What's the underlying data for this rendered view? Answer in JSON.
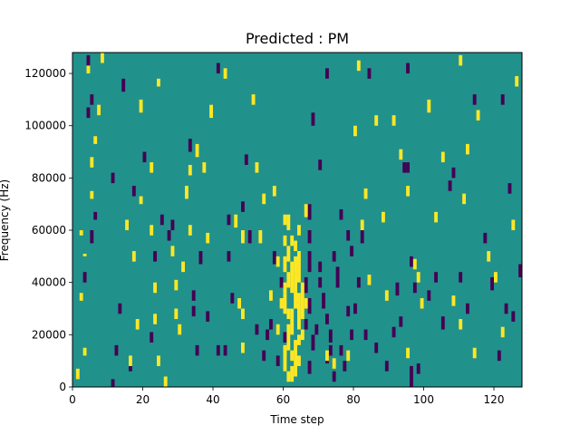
{
  "chart_data": {
    "type": "heatmap",
    "title": "Predicted : PM",
    "xlabel": "Time step",
    "ylabel": "Frequency (Hz)",
    "xlim": [
      0,
      128
    ],
    "ylim": [
      0,
      128000
    ],
    "xticks": [
      0,
      20,
      40,
      60,
      80,
      100,
      120
    ],
    "xtick_labels": [
      "0",
      "20",
      "40",
      "60",
      "80",
      "100",
      "120"
    ],
    "yticks": [
      0,
      20000,
      40000,
      60000,
      80000,
      100000,
      120000
    ],
    "ytick_labels": [
      "0",
      "20000",
      "40000",
      "60000",
      "80000",
      "100000",
      "120000"
    ],
    "grid": false,
    "colors": {
      "background": "#21918c",
      "low": "#440154",
      "high": "#fde725",
      "frame": "#000000"
    },
    "segments_high": [
      [
        4,
        120000,
        123000
      ],
      [
        2,
        58000,
        60000
      ],
      [
        3,
        50000,
        51000
      ],
      [
        2,
        33000,
        36000
      ],
      [
        1,
        3000,
        7000
      ],
      [
        3,
        12000,
        15000
      ],
      [
        5,
        84000,
        88000
      ],
      [
        6,
        93000,
        96000
      ],
      [
        7,
        104000,
        108000
      ],
      [
        5,
        72000,
        75000
      ],
      [
        8,
        124000,
        128000
      ],
      [
        17,
        48000,
        52000
      ],
      [
        19,
        70000,
        73000
      ],
      [
        16,
        8000,
        12000
      ],
      [
        18,
        22000,
        26000
      ],
      [
        15,
        60000,
        64000
      ],
      [
        19,
        105000,
        110000
      ],
      [
        22,
        82000,
        86000
      ],
      [
        24,
        115000,
        118000
      ],
      [
        22,
        58000,
        62000
      ],
      [
        23,
        36000,
        40000
      ],
      [
        23,
        24000,
        28000
      ],
      [
        24,
        8000,
        12000
      ],
      [
        26,
        0,
        4000
      ],
      [
        28,
        50000,
        54000
      ],
      [
        29,
        37000,
        41000
      ],
      [
        29,
        26000,
        30000
      ],
      [
        30,
        20000,
        24000
      ],
      [
        31,
        44000,
        48000
      ],
      [
        32,
        72000,
        77000
      ],
      [
        33,
        81000,
        85000
      ],
      [
        33,
        58000,
        62000
      ],
      [
        35,
        88000,
        93000
      ],
      [
        37,
        82000,
        86000
      ],
      [
        38,
        55000,
        59000
      ],
      [
        39,
        103000,
        108000
      ],
      [
        43,
        118000,
        122000
      ],
      [
        46,
        61000,
        66000
      ],
      [
        48,
        55000,
        60000
      ],
      [
        47,
        30000,
        34000
      ],
      [
        48,
        13000,
        17000
      ],
      [
        48,
        26000,
        30000
      ],
      [
        51,
        108000,
        112000
      ],
      [
        52,
        82000,
        86000
      ],
      [
        54,
        70000,
        74000
      ],
      [
        53,
        55000,
        60000
      ],
      [
        57,
        73000,
        77000
      ],
      [
        58,
        20000,
        24000
      ],
      [
        60,
        12000,
        16000
      ],
      [
        62,
        2000,
        6000
      ],
      [
        64,
        8000,
        12000
      ],
      [
        66,
        65000,
        70000
      ],
      [
        72,
        10000,
        14000
      ],
      [
        74,
        7000,
        11000
      ],
      [
        80,
        96000,
        100000
      ],
      [
        81,
        121000,
        125000
      ],
      [
        82,
        60000,
        64000
      ],
      [
        83,
        72000,
        76000
      ],
      [
        84,
        39000,
        43000
      ],
      [
        86,
        100000,
        104000
      ],
      [
        88,
        63000,
        67000
      ],
      [
        89,
        33000,
        37000
      ],
      [
        91,
        100000,
        104000
      ],
      [
        93,
        87000,
        91000
      ],
      [
        95,
        73000,
        77000
      ],
      [
        95,
        11000,
        15000
      ],
      [
        97,
        45000,
        49000
      ],
      [
        98,
        40000,
        44000
      ],
      [
        99,
        30000,
        34000
      ],
      [
        101,
        105000,
        110000
      ],
      [
        103,
        63000,
        67000
      ],
      [
        105,
        86000,
        90000
      ],
      [
        108,
        31000,
        35000
      ],
      [
        110,
        123000,
        127000
      ],
      [
        110,
        22000,
        26000
      ],
      [
        112,
        89000,
        93000
      ],
      [
        115,
        102000,
        106000
      ],
      [
        118,
        48000,
        52000
      ],
      [
        120,
        40000,
        44000
      ],
      [
        122,
        19000,
        23000
      ],
      [
        126,
        115000,
        119000
      ],
      [
        111,
        70000,
        74000
      ],
      [
        114,
        11000,
        15000
      ],
      [
        78,
        10000,
        14000
      ],
      [
        56,
        33000,
        37000
      ],
      [
        125,
        60000,
        64000
      ]
    ],
    "segments_low": [
      [
        4,
        123000,
        127000
      ],
      [
        5,
        108000,
        112000
      ],
      [
        4,
        103000,
        107000
      ],
      [
        6,
        64000,
        67000
      ],
      [
        5,
        55000,
        60000
      ],
      [
        3,
        40000,
        44000
      ],
      [
        11,
        78000,
        82000
      ],
      [
        12,
        12000,
        16000
      ],
      [
        13,
        28000,
        32000
      ],
      [
        11,
        0,
        3000
      ],
      [
        14,
        113000,
        118000
      ],
      [
        16,
        6000,
        10000
      ],
      [
        17,
        73000,
        77000
      ],
      [
        20,
        86000,
        90000
      ],
      [
        22,
        17000,
        21000
      ],
      [
        23,
        48000,
        52000
      ],
      [
        25,
        62000,
        66000
      ],
      [
        27,
        56000,
        60000
      ],
      [
        28,
        60000,
        64000
      ],
      [
        33,
        90000,
        95000
      ],
      [
        34,
        27000,
        31000
      ],
      [
        34,
        33000,
        37000
      ],
      [
        35,
        12000,
        16000
      ],
      [
        36,
        47000,
        52000
      ],
      [
        38,
        25000,
        29000
      ],
      [
        41,
        120000,
        124000
      ],
      [
        41,
        12000,
        16000
      ],
      [
        43,
        12000,
        16000
      ],
      [
        44,
        62000,
        66000
      ],
      [
        44,
        48000,
        52000
      ],
      [
        45,
        32000,
        36000
      ],
      [
        48,
        67000,
        71000
      ],
      [
        49,
        85000,
        89000
      ],
      [
        50,
        55000,
        60000
      ],
      [
        52,
        20000,
        24000
      ],
      [
        54,
        10000,
        14000
      ],
      [
        55,
        18000,
        22000
      ],
      [
        56,
        22000,
        26000
      ],
      [
        57,
        47000,
        52000
      ],
      [
        58,
        8000,
        12000
      ],
      [
        59,
        38000,
        42000
      ],
      [
        60,
        17000,
        21000
      ],
      [
        68,
        100000,
        105000
      ],
      [
        70,
        83000,
        87000
      ],
      [
        72,
        118000,
        122000
      ],
      [
        75,
        42000,
        46000
      ],
      [
        79,
        18000,
        22000
      ],
      [
        80,
        28000,
        32000
      ],
      [
        81,
        38000,
        42000
      ],
      [
        82,
        55000,
        60000
      ],
      [
        83,
        18000,
        22000
      ],
      [
        84,
        118000,
        122000
      ],
      [
        86,
        13000,
        17000
      ],
      [
        89,
        6000,
        10000
      ],
      [
        92,
        35000,
        40000
      ],
      [
        93,
        23000,
        27000
      ],
      [
        95,
        120000,
        124000
      ],
      [
        98,
        5000,
        9000
      ],
      [
        101,
        33000,
        37000
      ],
      [
        103,
        40000,
        44000
      ],
      [
        105,
        22000,
        27000
      ],
      [
        107,
        75000,
        79000
      ],
      [
        110,
        40000,
        44000
      ],
      [
        112,
        28000,
        32000
      ],
      [
        114,
        108000,
        112000
      ],
      [
        117,
        55000,
        59000
      ],
      [
        119,
        37000,
        42000
      ],
      [
        121,
        10000,
        14000
      ],
      [
        123,
        28000,
        32000
      ],
      [
        125,
        25000,
        29000
      ],
      [
        127,
        42000,
        47000
      ],
      [
        124,
        74000,
        78000
      ],
      [
        122,
        108000,
        112000
      ],
      [
        108,
        80000,
        84000
      ],
      [
        91,
        19000,
        23000
      ]
    ],
    "dense_high": [
      [
        60,
        62000,
        66000
      ],
      [
        61,
        60000,
        66000
      ],
      [
        60,
        54000,
        58000
      ],
      [
        61,
        48000,
        54000
      ],
      [
        60,
        44000,
        50000
      ],
      [
        61,
        38000,
        44000
      ],
      [
        62,
        36000,
        48000
      ],
      [
        63,
        30000,
        50000
      ],
      [
        60,
        28000,
        36000
      ],
      [
        64,
        22000,
        36000
      ],
      [
        62,
        20000,
        30000
      ],
      [
        61,
        14000,
        24000
      ],
      [
        63,
        8000,
        18000
      ],
      [
        60,
        6000,
        14000
      ],
      [
        62,
        4000,
        8000
      ],
      [
        61,
        2000,
        6000
      ],
      [
        64,
        40000,
        52000
      ],
      [
        63,
        52000,
        56000
      ],
      [
        65,
        26000,
        40000
      ],
      [
        59,
        30000,
        34000
      ],
      [
        62,
        10000,
        14000
      ],
      [
        64,
        16000,
        20000
      ],
      [
        60,
        36000,
        40000
      ],
      [
        58,
        46000,
        50000
      ],
      [
        65,
        18000,
        22000
      ],
      [
        63,
        4000,
        8000
      ],
      [
        62,
        54000,
        58000
      ],
      [
        64,
        58000,
        62000
      ],
      [
        61,
        26000,
        30000
      ],
      [
        66,
        30000,
        34000
      ]
    ],
    "dense_low": [
      [
        67,
        64000,
        70000
      ],
      [
        67,
        55000,
        60000
      ],
      [
        67,
        44000,
        52000
      ],
      [
        66,
        36000,
        42000
      ],
      [
        67,
        28000,
        34000
      ],
      [
        66,
        22000,
        26000
      ],
      [
        68,
        14000,
        20000
      ],
      [
        67,
        5000,
        10000
      ],
      [
        70,
        44000,
        48000
      ],
      [
        71,
        30000,
        36000
      ],
      [
        72,
        24000,
        28000
      ],
      [
        73,
        17000,
        22000
      ],
      [
        74,
        48000,
        52000
      ],
      [
        75,
        38000,
        42000
      ],
      [
        76,
        12000,
        16000
      ],
      [
        77,
        6000,
        10000
      ],
      [
        78,
        56000,
        60000
      ],
      [
        76,
        64000,
        68000
      ],
      [
        73,
        12000,
        16000
      ],
      [
        70,
        38000,
        42000
      ],
      [
        96,
        0,
        8000
      ],
      [
        97,
        36000,
        40000
      ],
      [
        96,
        46000,
        50000
      ],
      [
        95,
        82000,
        86000
      ],
      [
        94,
        82000,
        86000
      ],
      [
        72,
        9000,
        13000
      ],
      [
        69,
        20000,
        24000
      ],
      [
        74,
        2000,
        6000
      ],
      [
        78,
        27000,
        31000
      ],
      [
        79,
        50000,
        54000
      ]
    ]
  }
}
